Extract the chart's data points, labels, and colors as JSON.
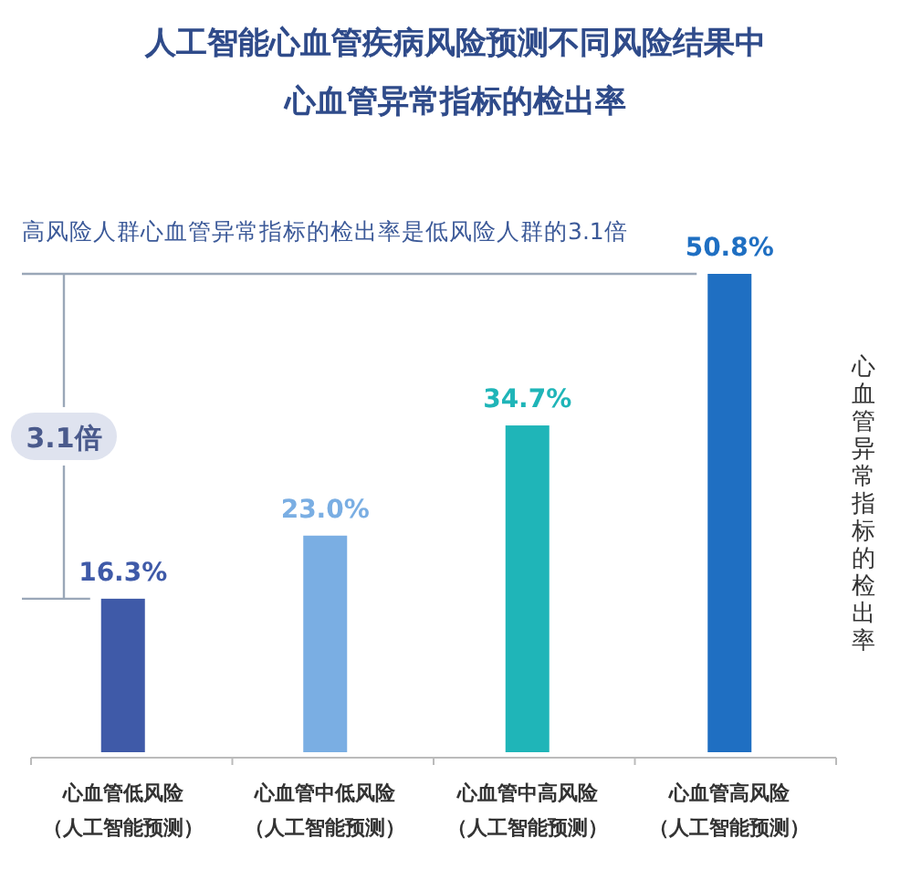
{
  "chart_data": {
    "type": "bar",
    "title": "人工智能心血管疾病风险预测不同风险结果中心血管异常指标的检出率",
    "ylabel": "心血管异常指标的检出率",
    "categories": [
      "心血管低风险（人工智能预测）",
      "心血管中低风险（人工智能预测）",
      "心血管中高风险（人工智能预测）",
      "心血管高风险（人工智能预测）"
    ],
    "values": [
      16.3,
      23.0,
      34.7,
      50.8
    ],
    "colors": [
      "#3f5aa8",
      "#7aaee3",
      "#1fb5b8",
      "#1f6fc2"
    ],
    "value_labels": [
      "16.3%",
      "23.0%",
      "34.7%",
      "50.8%"
    ],
    "annotations": [
      "高风险人群心血管异常指标的检出率是低风险人群的3.1倍",
      "3.1倍"
    ],
    "ref_lines": [
      {
        "axis": "y",
        "value": 50.8,
        "color": "#9aa7b8"
      },
      {
        "axis": "y",
        "value": 16.3,
        "color": "#9aa7b8"
      }
    ]
  }
}
